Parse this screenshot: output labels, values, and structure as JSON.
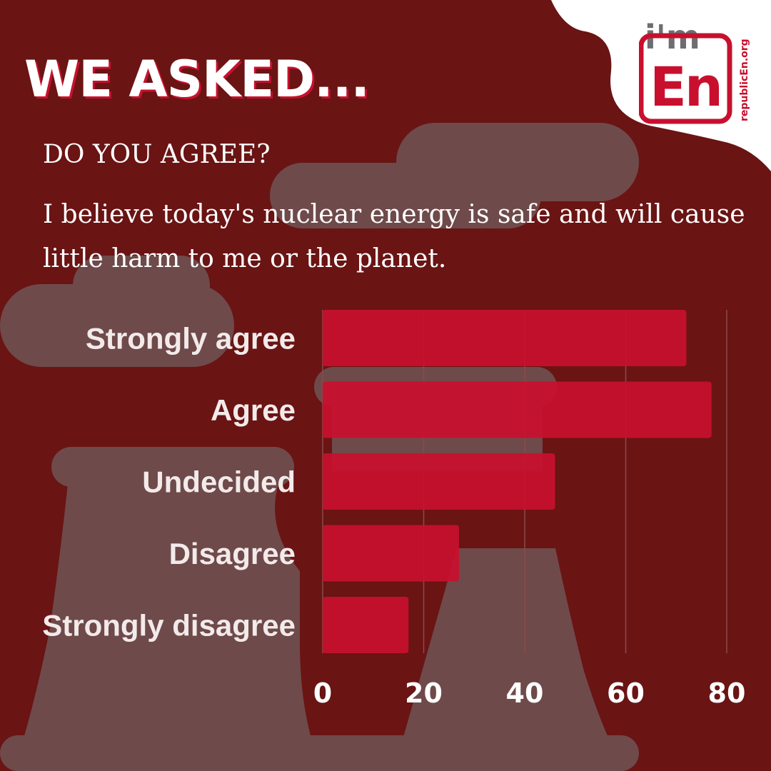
{
  "header": {
    "headline": "WE ASKED...",
    "question": "DO YOU AGREE?",
    "statement": "I believe today's nuclear energy is safe and will cause little harm to me or the planet."
  },
  "logo": {
    "top_text": "i'm",
    "main_text": "En",
    "side_text": "republicEn.org",
    "icon": "republicen-logo"
  },
  "colors": {
    "background": "#6a1414",
    "bar": "#c8102e",
    "smoke": "#6f4a4a",
    "logo_red": "#c8102e",
    "logo_gray": "#6d6e71"
  },
  "chart_data": {
    "type": "bar",
    "orientation": "horizontal",
    "categories": [
      "Strongly agree",
      "Agree",
      "Undecided",
      "Disagree",
      "Strongly disagree"
    ],
    "values": [
      72,
      77,
      46,
      27,
      17
    ],
    "xticks": [
      0,
      20,
      40,
      60,
      80
    ],
    "xlim": [
      0,
      80
    ],
    "grid": "vertical",
    "title": "",
    "xlabel": "",
    "ylabel": ""
  }
}
